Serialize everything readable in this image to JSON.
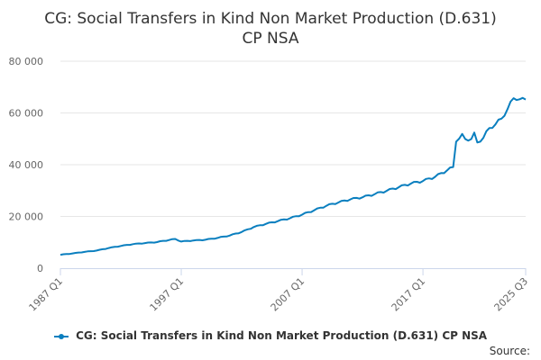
{
  "chart_data": {
    "type": "line",
    "title": "CG: Social Transfers in Kind Non Market Production (D.631)",
    "title_line2": "CP NSA",
    "xlabel": "",
    "ylabel": "",
    "ylim": [
      0,
      80000
    ],
    "yticks": [
      0,
      20000,
      40000,
      60000,
      80000
    ],
    "ytick_labels": [
      "0",
      "20 000",
      "40 000",
      "60 000",
      "80 000"
    ],
    "xtick_labels": [
      "1987 Q1",
      "1997 Q1",
      "2007 Q1",
      "2017 Q1",
      "2025 Q3"
    ],
    "xtick_positions": [
      1987.0,
      1997.0,
      2007.0,
      2017.0,
      2025.5
    ],
    "xlim": [
      1987.0,
      2025.5
    ],
    "grid": true,
    "legend_position": "bottom",
    "series": [
      {
        "name": "CG: Social Transfers in Kind Non Market Production (D.631) CP NSA",
        "color": "#0a7fbf",
        "x": [
          1987.0,
          1988.0,
          1989.0,
          1990.0,
          1991.0,
          1992.0,
          1993.0,
          1994.0,
          1995.0,
          1996.0,
          1996.5,
          1997.0,
          1998.0,
          1999.0,
          2000.0,
          2001.0,
          2002.0,
          2003.0,
          2004.0,
          2005.0,
          2006.0,
          2007.0,
          2008.0,
          2009.0,
          2010.0,
          2011.0,
          2012.0,
          2013.0,
          2014.0,
          2015.0,
          2016.0,
          2017.0,
          2018.0,
          2019.0,
          2019.5,
          2019.75,
          2020.25,
          2020.5,
          2021.0,
          2021.25,
          2021.5,
          2022.0,
          2022.5,
          2023.0,
          2023.5,
          2024.0,
          2024.5,
          2024.75,
          2025.0,
          2025.25,
          2025.5
        ],
        "values": [
          5200,
          5700,
          6300,
          6800,
          7800,
          8600,
          9300,
          9700,
          10100,
          10900,
          11300,
          10300,
          10700,
          11000,
          11700,
          12600,
          14000,
          15900,
          17100,
          18200,
          19300,
          20700,
          22400,
          24100,
          25400,
          26600,
          27400,
          28600,
          29900,
          31300,
          32700,
          33700,
          35300,
          37800,
          39100,
          48900,
          51900,
          49900,
          49900,
          52400,
          48600,
          50400,
          54200,
          55600,
          57800,
          61500,
          65700,
          65000,
          65300,
          65800,
          65200
        ]
      }
    ]
  },
  "source_label": "Source:"
}
